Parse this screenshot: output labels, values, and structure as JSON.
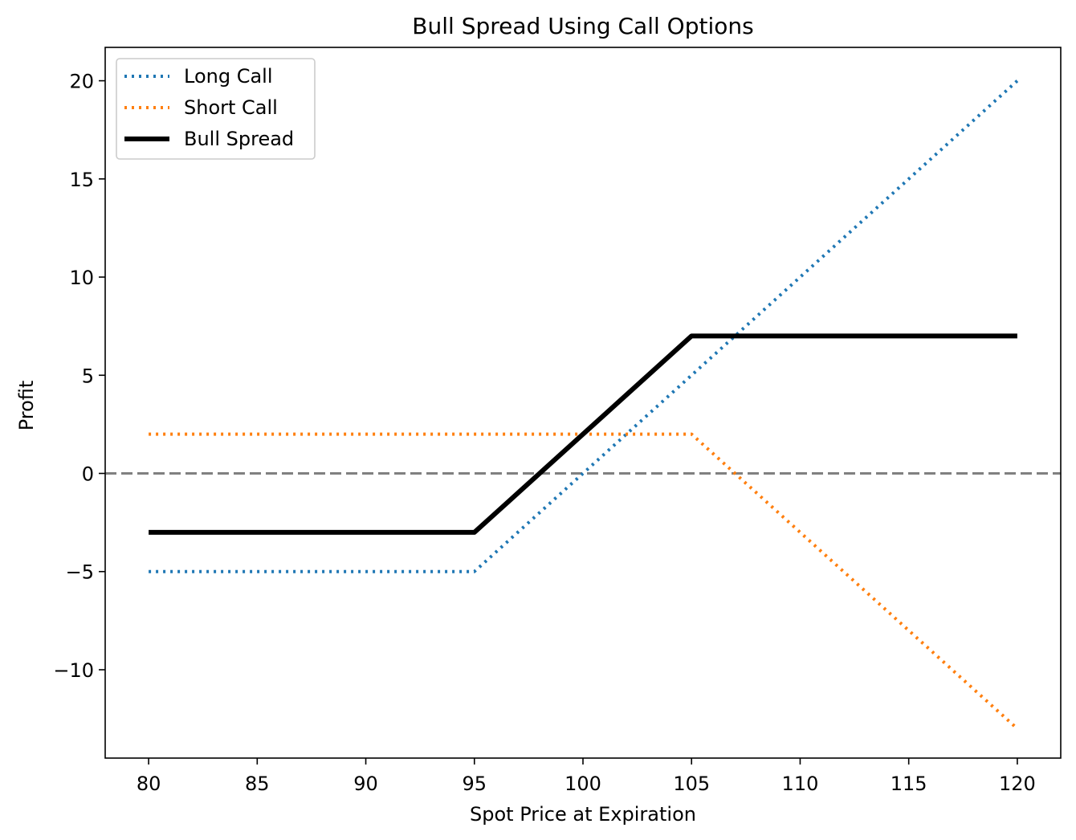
{
  "chart_data": {
    "type": "line",
    "title": "Bull Spread Using Call Options",
    "xlabel": "Spot Price at Expiration",
    "ylabel": "Profit",
    "xlim": [
      78,
      122
    ],
    "ylim": [
      -14.5,
      21.7
    ],
    "xticks": [
      80,
      85,
      90,
      95,
      100,
      105,
      110,
      115,
      120
    ],
    "yticks": [
      -10,
      -5,
      0,
      5,
      10,
      15,
      20
    ],
    "ytick_labels": [
      "−10",
      "−5",
      "0",
      "5",
      "10",
      "15",
      "20"
    ],
    "grid": false,
    "legend_position": "top-left",
    "reference_line": {
      "y": 0,
      "color": "#808080",
      "style": "dashed"
    },
    "series": [
      {
        "name": "Long Call",
        "color": "#1f77b4",
        "style": "dotted",
        "x": [
          80,
          95,
          120
        ],
        "y": [
          -5,
          -5,
          20
        ]
      },
      {
        "name": "Short Call",
        "color": "#ff7f0e",
        "style": "dotted",
        "x": [
          80,
          105,
          120
        ],
        "y": [
          2,
          2,
          -13
        ]
      },
      {
        "name": "Bull Spread",
        "color": "#000000",
        "style": "solid",
        "x": [
          80,
          95,
          105,
          120
        ],
        "y": [
          -3,
          -3,
          7,
          7
        ]
      }
    ]
  }
}
